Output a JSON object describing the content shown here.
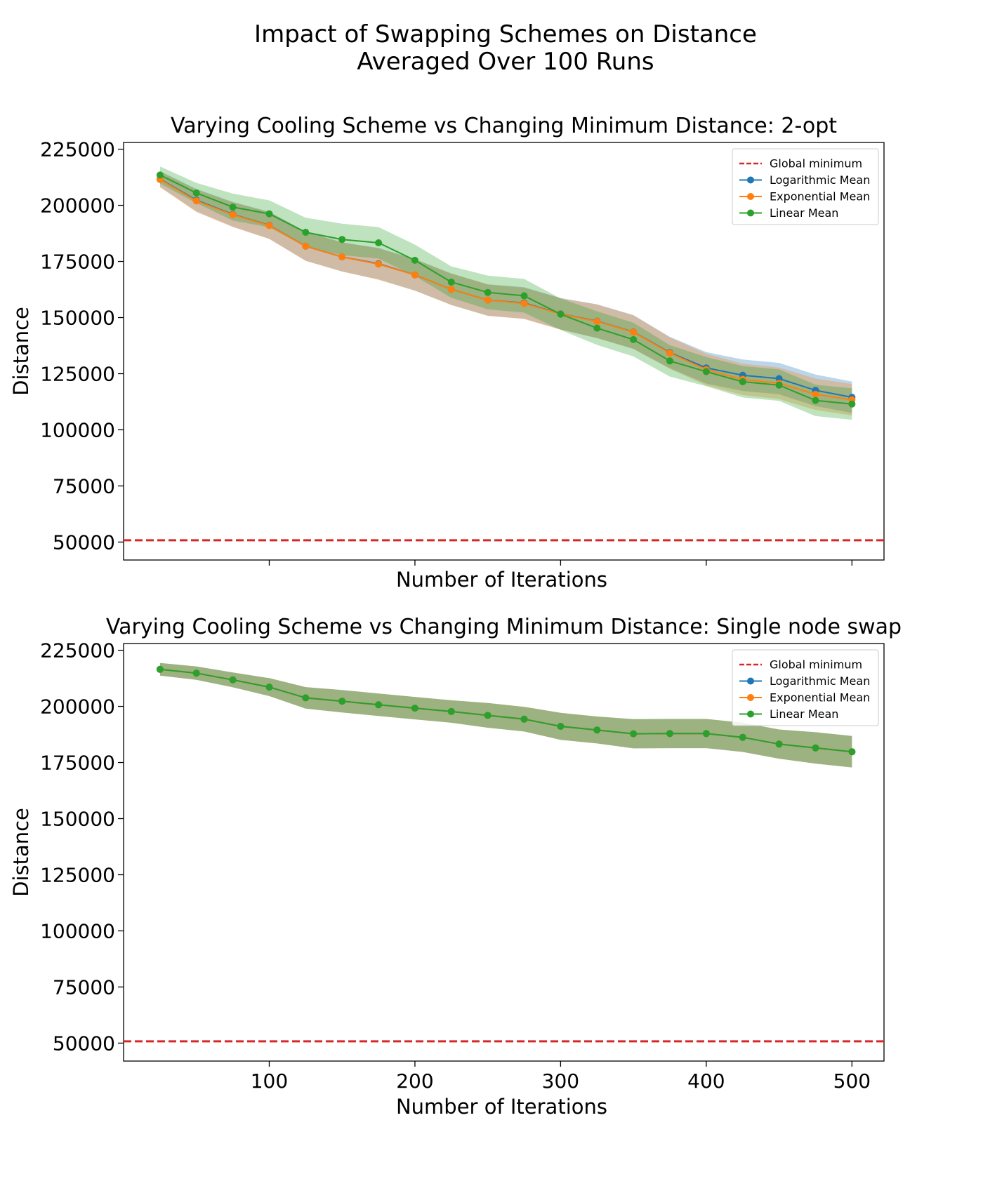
{
  "figure": {
    "suptitle_lines": [
      "Impact of Swapping Schemes on Distance",
      "Averaged Over 100 Runs"
    ]
  },
  "chart_data": [
    {
      "type": "line",
      "title": "Varying Cooling Scheme vs Changing Minimum Distance: 2-opt",
      "xlabel": "Number of Iterations",
      "ylabel": "Distance",
      "xlim": [
        0,
        522
      ],
      "ylim": [
        42000,
        228000
      ],
      "yticks": [
        50000,
        75000,
        100000,
        125000,
        150000,
        175000,
        200000,
        225000
      ],
      "xticks": [
        100,
        200,
        300,
        400,
        500
      ],
      "show_xtick_labels": false,
      "grid": false,
      "legend_position": "upper right",
      "global_minimum": {
        "name": "Global minimum",
        "value": 50800,
        "color": "#d62728"
      },
      "x": [
        25,
        50,
        75,
        100,
        125,
        150,
        175,
        200,
        225,
        250,
        275,
        300,
        325,
        350,
        375,
        400,
        425,
        450,
        475,
        500
      ],
      "series": [
        {
          "name": "Logarithmic Mean",
          "color": "#1f77b4",
          "values": [
            211700,
            202300,
            196000,
            191100,
            181800,
            177000,
            174000,
            169000,
            162600,
            157800,
            156500,
            151700,
            148400,
            143600,
            134400,
            127600,
            124300,
            122800,
            117600,
            114500
          ],
          "std": [
            3500,
            5000,
            5500,
            6000,
            6500,
            6500,
            7000,
            7000,
            7000,
            7000,
            7000,
            7000,
            7500,
            7500,
            7000,
            7000,
            7000,
            7000,
            7000,
            7000
          ]
        },
        {
          "name": "Exponential Mean",
          "color": "#ff7f0e",
          "values": [
            211500,
            202000,
            195800,
            191000,
            181800,
            177000,
            173800,
            169000,
            162600,
            157800,
            156300,
            151600,
            148300,
            143500,
            134200,
            126800,
            122500,
            120700,
            115800,
            113400
          ],
          "std": [
            3500,
            5000,
            5500,
            6000,
            6500,
            6500,
            7000,
            7000,
            7000,
            7000,
            7000,
            7000,
            7500,
            7500,
            7000,
            7000,
            7000,
            7000,
            7000,
            7000
          ]
        },
        {
          "name": "Linear Mean",
          "color": "#2ca02c",
          "values": [
            213500,
            205500,
            199200,
            196200,
            188000,
            184800,
            183300,
            175500,
            165800,
            161200,
            159700,
            151500,
            145300,
            140200,
            130700,
            125900,
            121400,
            119900,
            113100,
            111500
          ],
          "std": [
            3800,
            4500,
            6000,
            6000,
            6500,
            7000,
            7000,
            7000,
            7000,
            7500,
            7500,
            7000,
            7500,
            7500,
            7000,
            6500,
            7000,
            7000,
            7000,
            7000
          ]
        }
      ]
    },
    {
      "type": "line",
      "title": "Varying Cooling Scheme vs Changing Minimum Distance: Single node swap",
      "xlabel": "Number of Iterations",
      "ylabel": "Distance",
      "xlim": [
        0,
        522
      ],
      "ylim": [
        42000,
        228000
      ],
      "yticks": [
        50000,
        75000,
        100000,
        125000,
        150000,
        175000,
        200000,
        225000
      ],
      "xticks": [
        100,
        200,
        300,
        400,
        500
      ],
      "show_xtick_labels": true,
      "grid": false,
      "legend_position": "upper right",
      "global_minimum": {
        "name": "Global minimum",
        "value": 50800,
        "color": "#d62728"
      },
      "x": [
        25,
        50,
        75,
        100,
        125,
        150,
        175,
        200,
        225,
        250,
        275,
        300,
        325,
        350,
        375,
        400,
        425,
        450,
        475,
        500
      ],
      "series": [
        {
          "name": "Logarithmic Mean",
          "color": "#1f77b4",
          "values": [
            216500,
            214800,
            211800,
            208600,
            203800,
            202300,
            200700,
            199200,
            197700,
            196000,
            194300,
            191100,
            189500,
            187800,
            187900,
            187900,
            186200,
            183200,
            181500,
            179800
          ],
          "std": [
            2800,
            3000,
            3300,
            4000,
            4800,
            5000,
            5000,
            5000,
            5000,
            5500,
            5500,
            6000,
            6000,
            6500,
            6500,
            6500,
            6500,
            6500,
            7000,
            7000
          ]
        },
        {
          "name": "Exponential Mean",
          "color": "#ff7f0e",
          "values": [
            216500,
            214800,
            211800,
            208600,
            203800,
            202300,
            200700,
            199200,
            197700,
            196000,
            194300,
            191100,
            189500,
            187800,
            187900,
            187900,
            186200,
            183200,
            181500,
            179800
          ],
          "std": [
            2800,
            3000,
            3300,
            4000,
            4800,
            5000,
            5000,
            5000,
            5000,
            5500,
            5500,
            6000,
            6000,
            6500,
            6500,
            6500,
            6500,
            6500,
            7000,
            7000
          ]
        },
        {
          "name": "Linear Mean",
          "color": "#2ca02c",
          "values": [
            216500,
            214800,
            211800,
            208600,
            203800,
            202300,
            200700,
            199200,
            197700,
            196000,
            194300,
            191100,
            189500,
            187800,
            187900,
            187900,
            186200,
            183200,
            181500,
            179800
          ],
          "std": [
            2800,
            3000,
            3300,
            4000,
            4800,
            5000,
            5000,
            5000,
            5000,
            5500,
            5500,
            6000,
            6000,
            6500,
            6500,
            6500,
            6500,
            6500,
            7000,
            7000
          ]
        }
      ]
    }
  ]
}
